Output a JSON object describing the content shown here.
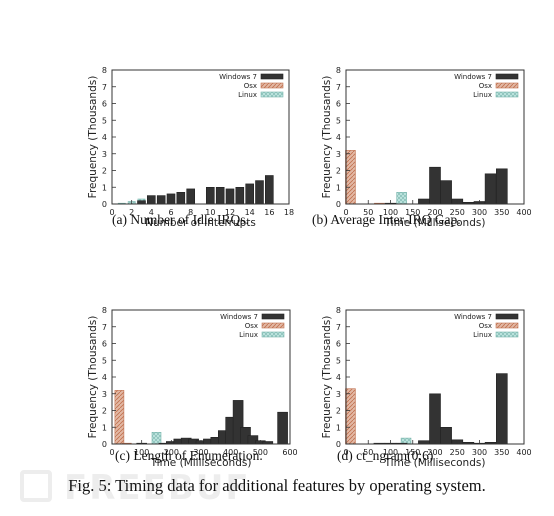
{
  "figure_caption": "Fig. 5: Timing data for additional features by operating system.",
  "watermark_text": "FREEBUF",
  "colors": {
    "windows7": "#333333",
    "osx": "#e2b8a4",
    "osx_edge": "#c0704f",
    "linux": "#bfe5e0",
    "linux_edge": "#7ab6ad"
  },
  "chart_data": [
    {
      "type": "bar",
      "caption": "(a) Number of Idle IRQs.",
      "xlabel": "Number of Interrupts",
      "ylabel": "Frequency (Thousands)",
      "xlim": [
        0,
        18
      ],
      "ylim": [
        0,
        8
      ],
      "xticks": [
        "0",
        "2",
        "4",
        "6",
        "8",
        "10",
        "12",
        "14",
        "16",
        "18"
      ],
      "yticks": [
        "0",
        "1",
        "2",
        "3",
        "4",
        "5",
        "6",
        "7",
        "8"
      ],
      "legend": "top-right",
      "series": [
        {
          "name": "Windows 7",
          "x": [
            3,
            4,
            5,
            6,
            7,
            8,
            9,
            10,
            11,
            12,
            13,
            14,
            15,
            16
          ],
          "values": [
            0.2,
            0.5,
            0.5,
            0.6,
            0.7,
            0.9,
            0,
            1.0,
            1.0,
            0.9,
            1.0,
            1.2,
            1.4,
            1.7
          ]
        },
        {
          "name": "Osx",
          "x": [
            3,
            4,
            5,
            6,
            7,
            8,
            10,
            11,
            12,
            13,
            14,
            15
          ],
          "values": [
            0.1,
            0.3,
            0.4,
            0.5,
            0.6,
            0.6,
            0.4,
            0.5,
            0.5,
            0.3,
            0.3,
            0.3
          ]
        },
        {
          "name": "Linux",
          "x": [
            1,
            2,
            3,
            4
          ],
          "values": [
            0.05,
            0.15,
            0.3,
            0.3
          ]
        }
      ]
    },
    {
      "type": "bar",
      "caption": "(b) Average Inter-IRQ Gap.",
      "xlabel": "Time (Milliseconds)",
      "ylabel": "Frequency (Thousands)",
      "xlim": [
        0,
        400
      ],
      "ylim": [
        0,
        8
      ],
      "xticks": [
        "0",
        "50",
        "100",
        "150",
        "200",
        "250",
        "300",
        "350",
        "400"
      ],
      "yticks": [
        "0",
        "1",
        "2",
        "3",
        "4",
        "5",
        "6",
        "7",
        "8"
      ],
      "legend": "top-right",
      "series": [
        {
          "name": "Windows 7",
          "x": [
            100,
            175,
            200,
            225,
            250,
            275,
            300,
            325,
            350
          ],
          "values": [
            0.05,
            0.3,
            2.2,
            1.4,
            0.3,
            0.1,
            0.15,
            1.8,
            2.1
          ]
        },
        {
          "name": "Osx",
          "x": [
            10,
            75
          ],
          "values": [
            3.2,
            0.05
          ]
        },
        {
          "name": "Linux",
          "x": [
            125
          ],
          "values": [
            0.7
          ]
        }
      ]
    },
    {
      "type": "bar",
      "caption": "(c) Length of Enumeration.",
      "xlabel": "Time (Milliseconds)",
      "ylabel": "Frequency (Thousands)",
      "xlim": [
        0,
        600
      ],
      "ylim": [
        0,
        8
      ],
      "xticks": [
        "0",
        "100",
        "200",
        "300",
        "400",
        "500",
        "600"
      ],
      "yticks": [
        "0",
        "1",
        "2",
        "3",
        "4",
        "5",
        "6",
        "7",
        "8"
      ],
      "legend": "top-right",
      "series": [
        {
          "name": "Windows 7",
          "x": [
            100,
            175,
            200,
            225,
            250,
            275,
            300,
            325,
            350,
            375,
            400,
            425,
            450,
            475,
            500,
            525,
            575
          ],
          "values": [
            0.05,
            0.05,
            0.15,
            0.3,
            0.35,
            0.3,
            0.2,
            0.3,
            0.4,
            0.8,
            1.6,
            2.6,
            1.0,
            0.5,
            0.2,
            0.15,
            1.9
          ]
        },
        {
          "name": "Osx",
          "x": [
            25,
            50
          ],
          "values": [
            3.2,
            0.05
          ]
        },
        {
          "name": "Linux",
          "x": [
            150
          ],
          "values": [
            0.7
          ]
        }
      ]
    },
    {
      "type": "bar",
      "caption": "(d) ct_ngram(0;6)",
      "xlabel": "Time (Milliseconds)",
      "ylabel": "Frequency (Thousands)",
      "xlim": [
        0,
        400
      ],
      "ylim": [
        0,
        8
      ],
      "xticks": [
        "0",
        "50",
        "100",
        "150",
        "200",
        "250",
        "300",
        "350",
        "400"
      ],
      "yticks": [
        "0",
        "1",
        "2",
        "3",
        "4",
        "5",
        "6",
        "7",
        "8"
      ],
      "legend": "top-right",
      "series": [
        {
          "name": "Windows 7",
          "x": [
            75,
            100,
            125,
            175,
            200,
            225,
            250,
            275,
            300,
            325,
            350
          ],
          "values": [
            0.05,
            0.05,
            0.05,
            0.2,
            3.0,
            1.0,
            0.25,
            0.1,
            0.05,
            0.1,
            4.2
          ]
        },
        {
          "name": "Osx",
          "x": [
            10
          ],
          "values": [
            3.3
          ]
        },
        {
          "name": "Linux",
          "x": [
            135
          ],
          "values": [
            0.35
          ]
        }
      ]
    }
  ]
}
